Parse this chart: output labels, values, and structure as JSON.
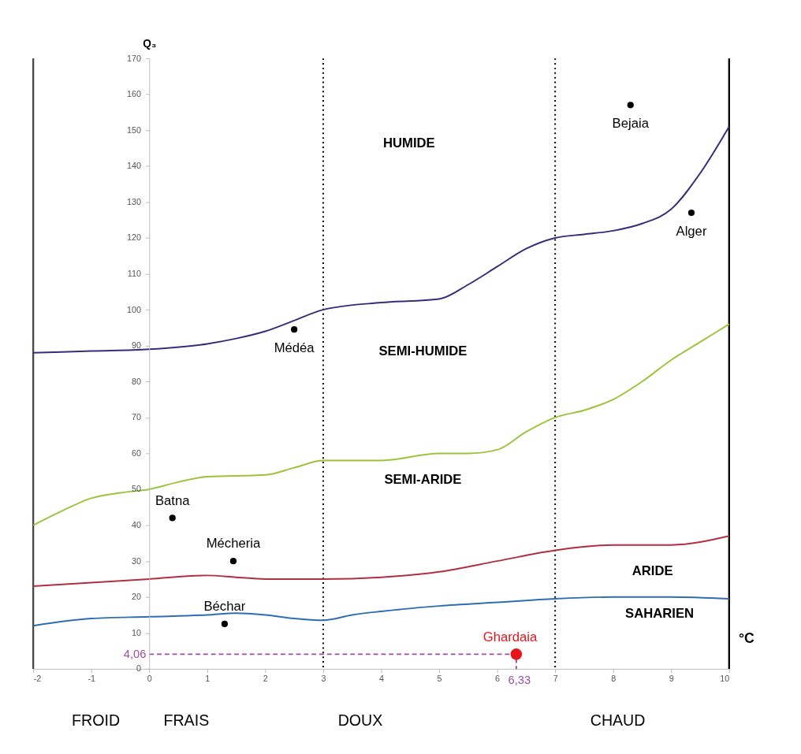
{
  "chart_data": {
    "type": "line",
    "xlabel": "°C",
    "ylabel": "Q₃",
    "xlim": [
      -2,
      10
    ],
    "ylim": [
      0,
      170
    ],
    "xticks": [
      -2,
      -1,
      0,
      1,
      2,
      3,
      4,
      5,
      6,
      7,
      8,
      9,
      10
    ],
    "yticks": [
      0,
      10,
      20,
      30,
      40,
      50,
      60,
      70,
      80,
      90,
      100,
      110,
      120,
      130,
      140,
      150,
      160,
      170
    ],
    "grid": false,
    "legend": false,
    "marker": "none",
    "line_style": "solid",
    "series": [
      {
        "color": "#3b2a7a",
        "x": [
          -2,
          -1,
          0,
          1,
          1.5,
          2,
          2.5,
          3,
          4,
          5,
          5.5,
          6,
          6.5,
          7,
          7.5,
          8,
          8.5,
          9,
          9.5,
          10
        ],
        "values": [
          88,
          88.5,
          89,
          90.5,
          92,
          94,
          97,
          100,
          102,
          103,
          107,
          112,
          117,
          120,
          121,
          122,
          124,
          128,
          138,
          151
        ]
      },
      {
        "color": "#9cc43a",
        "x": [
          -2,
          -1.5,
          -1,
          -0.5,
          0,
          0.5,
          1,
          2,
          2.5,
          3,
          4,
          5,
          5.5,
          6,
          6.5,
          7,
          7.5,
          8,
          8.5,
          9,
          9.5,
          10
        ],
        "values": [
          40,
          44,
          47.5,
          49,
          50,
          52,
          53.5,
          54,
          56,
          58,
          58,
          60,
          60,
          61,
          66,
          70,
          72,
          75,
          80,
          86,
          91,
          96
        ]
      },
      {
        "color": "#b03040",
        "x": [
          -2,
          -1,
          0,
          1,
          1.5,
          2,
          3,
          4,
          5,
          6,
          7,
          8,
          9,
          10
        ],
        "values": [
          23,
          24,
          25,
          26,
          25.5,
          25,
          25,
          25.5,
          27,
          30,
          33,
          34.5,
          34.5,
          37
        ]
      },
      {
        "color": "#2e6db4",
        "x": [
          -2,
          -1,
          0,
          1,
          1.5,
          2,
          2.5,
          3,
          3.5,
          4,
          5,
          6,
          7,
          8,
          9,
          10
        ],
        "values": [
          12,
          14,
          14.5,
          15,
          15.5,
          15,
          14,
          13.5,
          15,
          16,
          17.5,
          18.5,
          19.5,
          20,
          20,
          19.5
        ]
      },
      {
        "line_style": "dashed",
        "color": "#9b4fa0",
        "x": [
          0,
          6.33,
          6.33
        ],
        "values": [
          4.06,
          4.06,
          0
        ]
      },
      {
        "type": "scatter",
        "name": "Bejaia",
        "marker": "circle",
        "color": "#000000",
        "x": [
          8.3
        ],
        "values": [
          157
        ]
      },
      {
        "type": "scatter",
        "name": "Alger",
        "marker": "circle",
        "color": "#000000",
        "x": [
          9.35
        ],
        "values": [
          127
        ]
      },
      {
        "type": "scatter",
        "name": "Médéa",
        "marker": "circle",
        "color": "#000000",
        "x": [
          2.5
        ],
        "values": [
          94.5
        ]
      },
      {
        "type": "scatter",
        "name": "Batna",
        "marker": "circle",
        "color": "#000000",
        "x": [
          0.4
        ],
        "values": [
          42
        ]
      },
      {
        "type": "scatter",
        "name": "Mécheria",
        "marker": "circle",
        "color": "#000000",
        "x": [
          1.45
        ],
        "values": [
          30
        ]
      },
      {
        "type": "scatter",
        "name": "Béchar",
        "marker": "circle",
        "color": "#000000",
        "x": [
          1.3
        ],
        "values": [
          12.5
        ]
      },
      {
        "type": "scatter",
        "name": "Ghardaia",
        "marker": "circle",
        "color": "#e8141c",
        "x": [
          6.33
        ],
        "values": [
          4.06
        ]
      }
    ],
    "ref_lines": [
      {
        "axis": "x",
        "value": 3,
        "line_style": "dotted",
        "color": "#000000"
      },
      {
        "axis": "x",
        "value": 7,
        "line_style": "dotted",
        "color": "#000000"
      }
    ],
    "annotations": [
      "HUMIDE",
      "SEMI-HUMIDE",
      "SEMI-ARIDE",
      "ARIDE",
      "SAHARIEN",
      "FROID",
      "FRAIS",
      "DOUX",
      "CHAUD",
      {
        "text": "4,06",
        "x": 0,
        "y": 4.06
      },
      {
        "text": "6,33",
        "x": 6.33,
        "y": 0
      }
    ]
  }
}
